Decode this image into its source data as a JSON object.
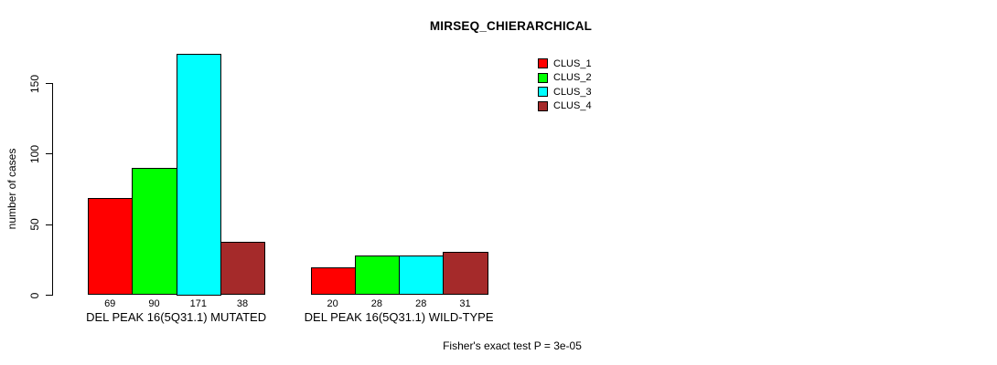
{
  "chart_data": {
    "type": "bar",
    "title": "MIRSEQ_CHIERARCHICAL",
    "ylabel": "number of cases",
    "xlabel": "",
    "ylim": [
      0,
      150
    ],
    "yticks": [
      0,
      50,
      100,
      150
    ],
    "grid": false,
    "legend_position": "top-right",
    "bar_value_labels": true,
    "categories": [
      "DEL PEAK 16(5Q31.1) MUTATED",
      "DEL PEAK 16(5Q31.1) WILD-TYPE"
    ],
    "series": [
      {
        "name": "CLUS_1",
        "color": "#FF0000",
        "values": [
          69,
          20
        ]
      },
      {
        "name": "CLUS_2",
        "color": "#00FF00",
        "values": [
          90,
          28
        ]
      },
      {
        "name": "CLUS_3",
        "color": "#00FFFF",
        "values": [
          171,
          28
        ]
      },
      {
        "name": "CLUS_4",
        "color": "#A52A2A",
        "values": [
          38,
          31
        ]
      }
    ],
    "footer": "Fisher's exact test P = 3e-05",
    "axis_color": "#000000",
    "background_color": "#FFFFFF"
  }
}
